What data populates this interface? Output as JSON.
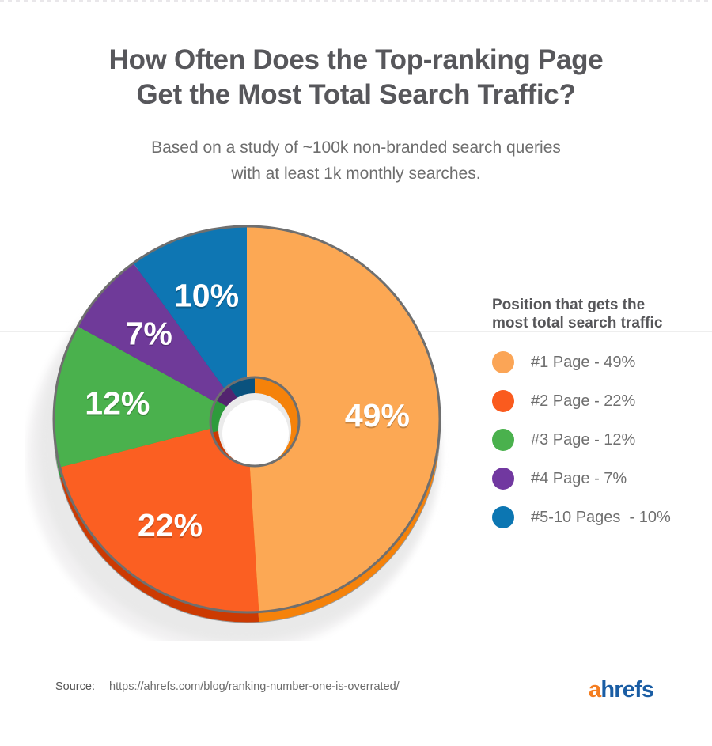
{
  "title": {
    "line1": "How Often Does the Top-ranking Page",
    "line2": "Get the Most Total Search Traffic?"
  },
  "subtitle": {
    "line1": "Based on a study of ~100k non-branded search queries",
    "line2": "with at least 1k monthly searches."
  },
  "legend": {
    "heading_line1": "Position that gets the",
    "heading_line2": "most total search traffic",
    "items": [
      {
        "label": "#1 Page - 49%",
        "color": "#FBA556"
      },
      {
        "label": "#2 Page - 22%",
        "color": "#FA5B1E"
      },
      {
        "label": "#3 Page - 12%",
        "color": "#4AB14D"
      },
      {
        "label": "#4 Page - 7%",
        "color": "#7138A0"
      },
      {
        "label": "#5-10 Pages  - 10%",
        "color": "#0C76B2"
      }
    ]
  },
  "chart_data": {
    "type": "pie",
    "title": "How Often Does the Top-ranking Page Get the Most Total Search Traffic?",
    "subtitle": "Based on a study of ~100k non-branded search queries with at least 1k monthly searches.",
    "categories": [
      "#1 Page",
      "#2 Page",
      "#3 Page",
      "#4 Page",
      "#5-10 Pages"
    ],
    "values": [
      49,
      22,
      12,
      7,
      10
    ],
    "unit": "%",
    "slice_labels": [
      "49%",
      "22%",
      "12%",
      "7%",
      "10%"
    ],
    "colors": [
      "#FCA854",
      "#FB5F22",
      "#4AB14D",
      "#6F3A99",
      "#0E76B3"
    ],
    "side_colors": [
      "#F5820A",
      "#CC3A02",
      "#2E9B3C",
      "#53246F",
      "#0A527E"
    ],
    "outline_color": "#6f6f6f",
    "donut": true,
    "start_angle_deg": 0,
    "direction": "clockwise",
    "legend_position": "right",
    "label_color": "#ffffff",
    "effect": "3d-side-with-shadow"
  },
  "source": {
    "label": "Source:",
    "url": "https://ahrefs.com/blog/ranking-number-one-is-overrated/"
  },
  "logo": {
    "part1": "a",
    "part2": "hrefs",
    "part1_color": "#F47D20",
    "part2_color": "#1A5DA4"
  }
}
